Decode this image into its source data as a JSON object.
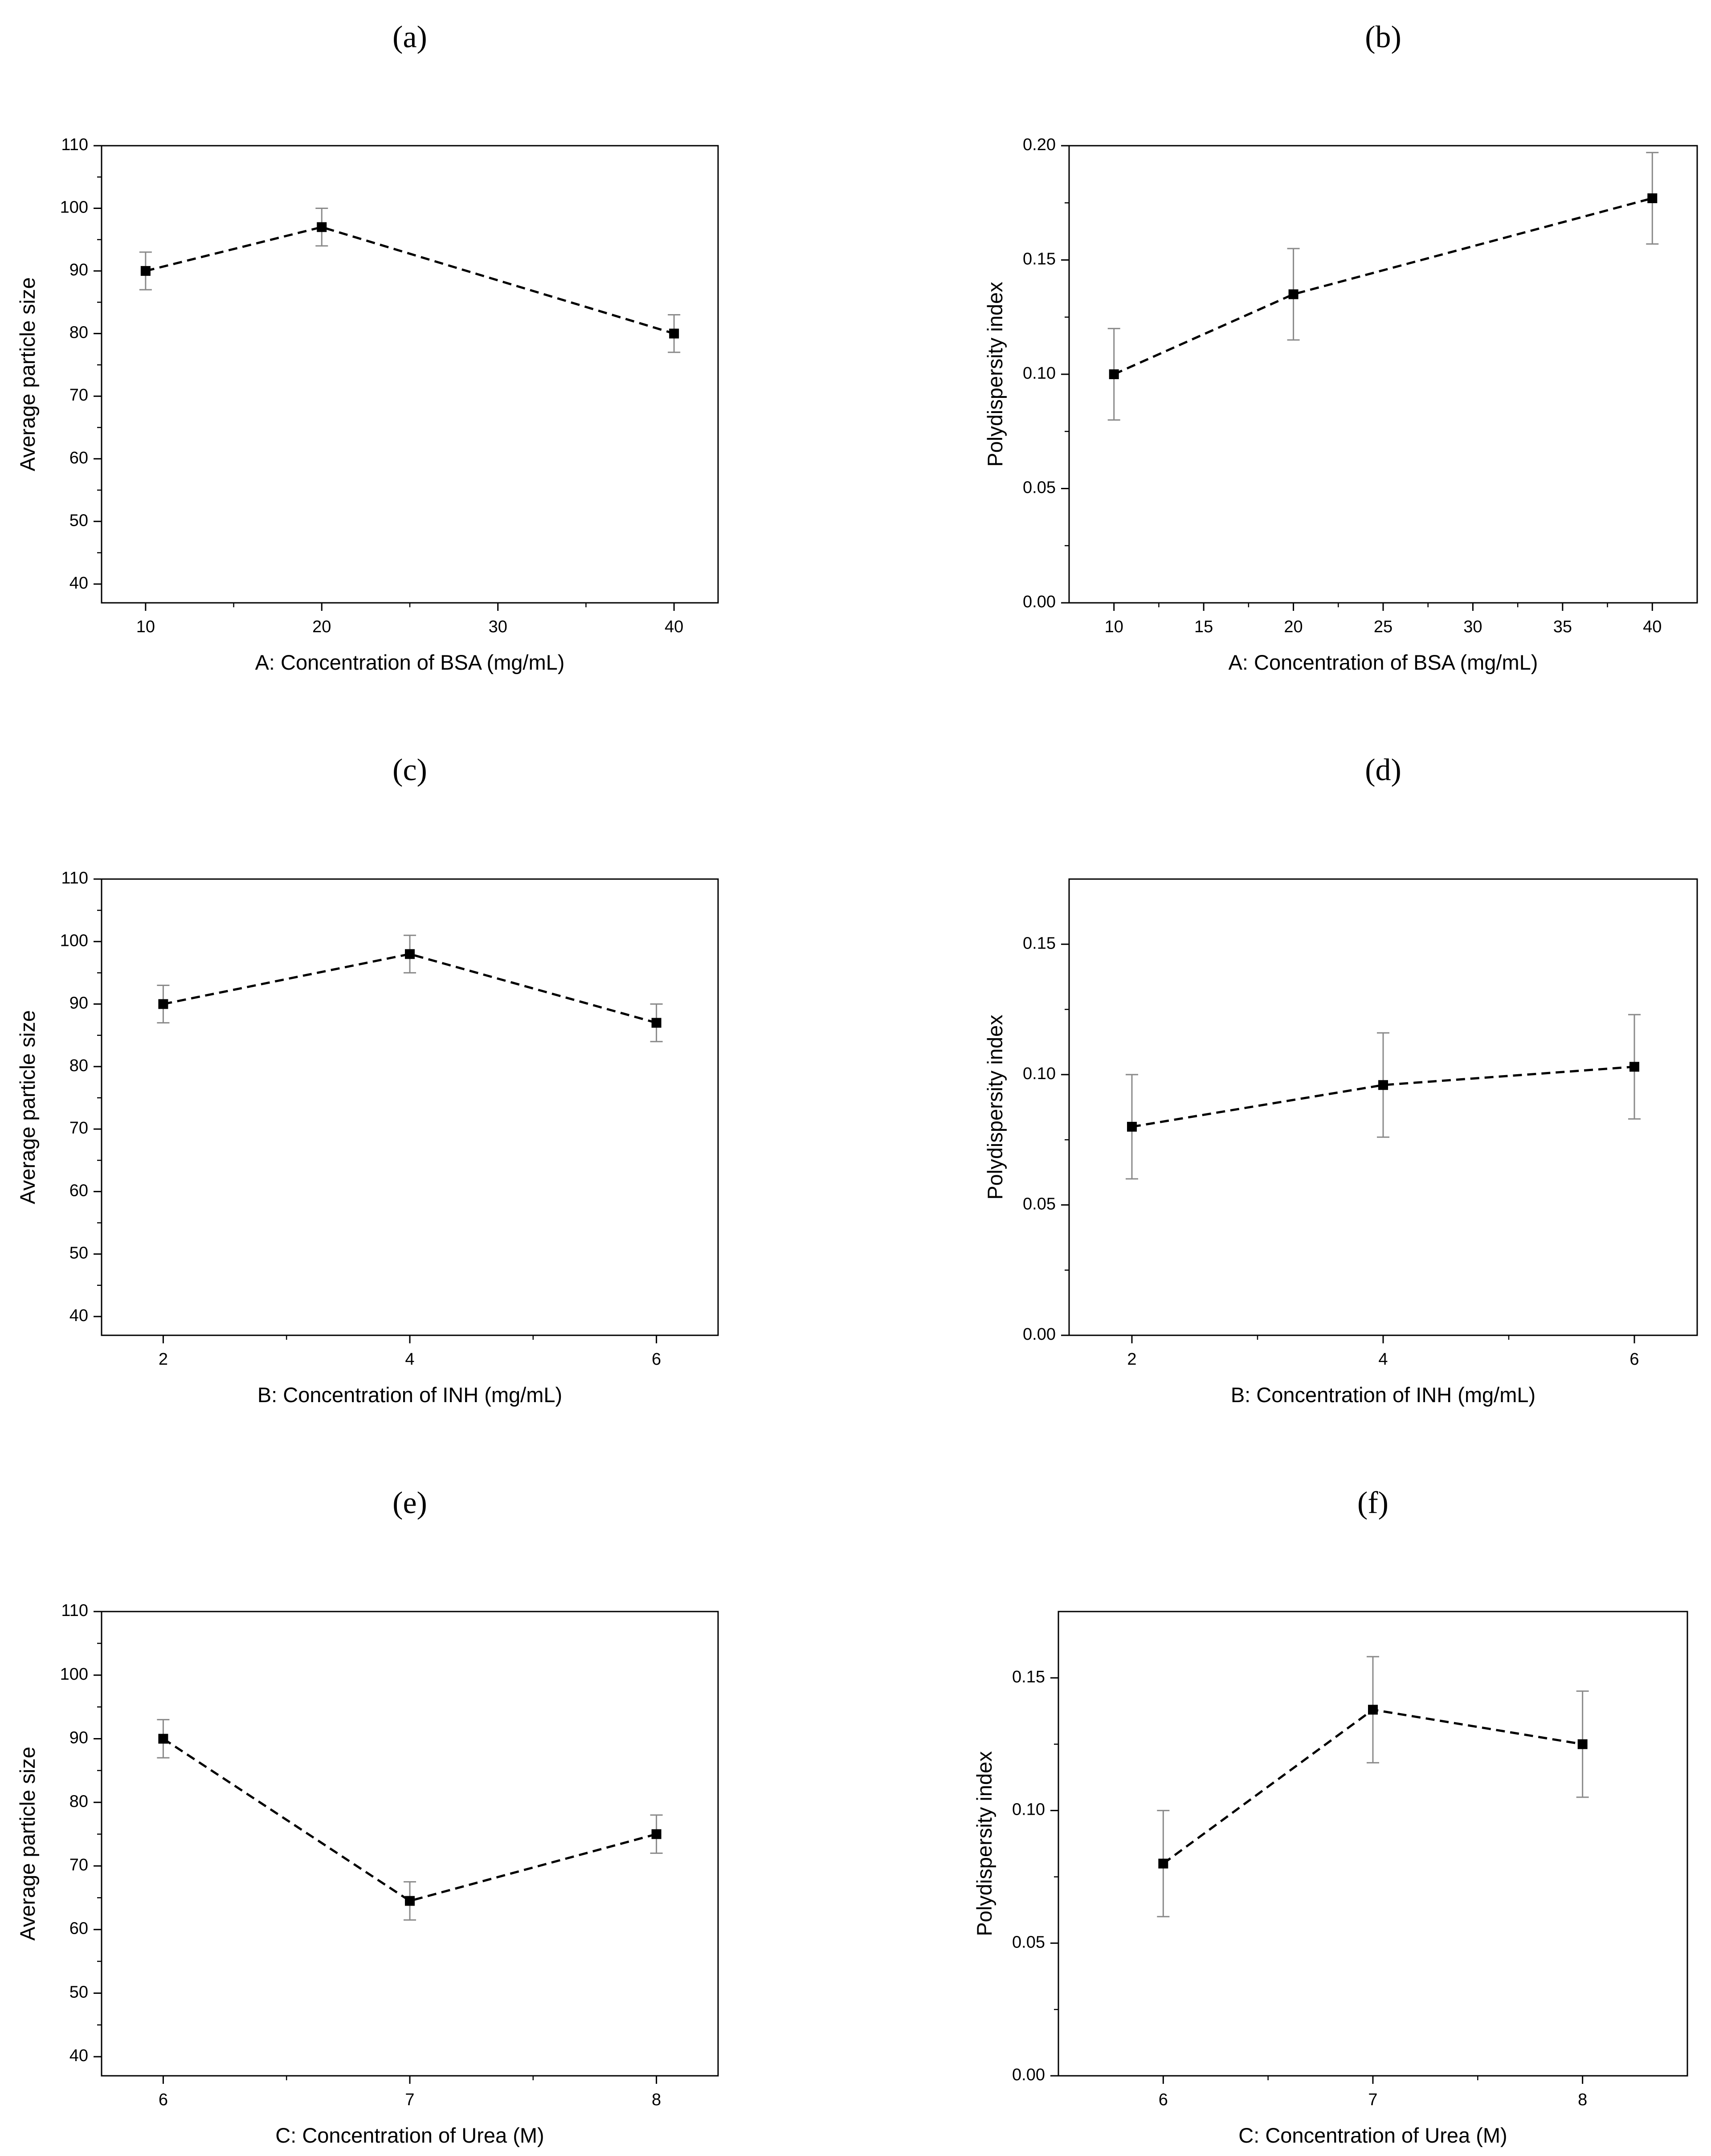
{
  "chart_data": [
    {
      "type": "line",
      "panel": "(a)",
      "xlabel": "A: Concentration of BSA (mg/mL)",
      "ylabel": "Average particle size",
      "xlim": [
        7.5,
        42.5
      ],
      "ylim": [
        37,
        110
      ],
      "xticks": [
        10,
        20,
        30,
        40
      ],
      "xticklabels": [
        "10",
        "20",
        "30",
        "40"
      ],
      "yticks": [
        40,
        50,
        60,
        70,
        80,
        90,
        100,
        110
      ],
      "yticklabels": [
        "40",
        "50",
        "60",
        "70",
        "80",
        "90",
        "100",
        "110"
      ],
      "x": [
        10,
        20,
        40
      ],
      "y": [
        90,
        97,
        80
      ],
      "err": [
        3,
        3,
        3
      ],
      "line_style": "dashed",
      "marker": "square"
    },
    {
      "type": "line",
      "panel": "(b)",
      "xlabel": "A: Concentration of BSA (mg/mL)",
      "ylabel": "Polydispersity index",
      "xlim": [
        7.5,
        42.5
      ],
      "ylim": [
        0.0,
        0.2
      ],
      "xticks": [
        10,
        15,
        20,
        25,
        30,
        35,
        40
      ],
      "xticklabels": [
        "10",
        "15",
        "20",
        "25",
        "30",
        "35",
        "40"
      ],
      "yticks": [
        0.0,
        0.05,
        0.1,
        0.15,
        0.2
      ],
      "yticklabels": [
        "0.00",
        "0.05",
        "0.10",
        "0.15",
        "0.20"
      ],
      "x": [
        10,
        20,
        40
      ],
      "y": [
        0.1,
        0.135,
        0.177
      ],
      "err": [
        0.02,
        0.02,
        0.02
      ],
      "line_style": "dashed",
      "marker": "square"
    },
    {
      "type": "line",
      "panel": "(c)",
      "xlabel": "B: Concentration of INH (mg/mL)",
      "ylabel": "Average particle size",
      "xlim": [
        1.5,
        6.5
      ],
      "ylim": [
        37,
        110
      ],
      "xticks": [
        2,
        4,
        6
      ],
      "xticklabels": [
        "2",
        "4",
        "6"
      ],
      "yticks": [
        40,
        50,
        60,
        70,
        80,
        90,
        100,
        110
      ],
      "yticklabels": [
        "40",
        "50",
        "60",
        "70",
        "80",
        "90",
        "100",
        "110"
      ],
      "x": [
        2,
        4,
        6
      ],
      "y": [
        90,
        98,
        87
      ],
      "err": [
        3,
        3,
        3
      ],
      "line_style": "dashed",
      "marker": "square"
    },
    {
      "type": "line",
      "panel": "(d)",
      "xlabel": "B: Concentration of INH (mg/mL)",
      "ylabel": "Polydispersity index",
      "xlim": [
        1.5,
        6.5
      ],
      "ylim": [
        0.0,
        0.175
      ],
      "xticks": [
        2,
        4,
        6
      ],
      "xticklabels": [
        "2",
        "4",
        "6"
      ],
      "yticks": [
        0.0,
        0.05,
        0.1,
        0.15
      ],
      "yticklabels": [
        "0.00",
        "0.05",
        "0.10",
        "0.15"
      ],
      "x": [
        2,
        4,
        6
      ],
      "y": [
        0.08,
        0.096,
        0.103
      ],
      "err": [
        0.02,
        0.02,
        0.02
      ],
      "line_style": "dashed",
      "marker": "square"
    },
    {
      "type": "line",
      "panel": "(e)",
      "xlabel": "C: Concentration of Urea (M)",
      "ylabel": "Average particle size",
      "xlim": [
        5.75,
        8.25
      ],
      "ylim": [
        37,
        110
      ],
      "xticks": [
        6,
        7,
        8
      ],
      "xticklabels": [
        "6",
        "7",
        "8"
      ],
      "yticks": [
        40,
        50,
        60,
        70,
        80,
        90,
        100,
        110
      ],
      "yticklabels": [
        "40",
        "50",
        "60",
        "70",
        "80",
        "90",
        "100",
        "110"
      ],
      "x": [
        6,
        7,
        8
      ],
      "y": [
        90,
        64.5,
        75
      ],
      "err": [
        3,
        3,
        3
      ],
      "line_style": "dashed",
      "marker": "square"
    },
    {
      "type": "line",
      "panel": "(f)",
      "xlabel": "C: Concentration of  Urea (M)",
      "ylabel": "Polydispersity index",
      "xlim": [
        5.5,
        8.5
      ],
      "ylim": [
        0.0,
        0.175
      ],
      "xticks": [
        6,
        7,
        8
      ],
      "xticklabels": [
        "6",
        "7",
        "8"
      ],
      "yticks": [
        0.0,
        0.05,
        0.1,
        0.15
      ],
      "yticklabels": [
        "0.00",
        "0.05",
        "0.10",
        "0.15"
      ],
      "x": [
        6,
        7,
        8
      ],
      "y": [
        0.08,
        0.138,
        0.125
      ],
      "err": [
        0.02,
        0.02,
        0.02
      ],
      "line_style": "dashed",
      "marker": "square"
    }
  ]
}
